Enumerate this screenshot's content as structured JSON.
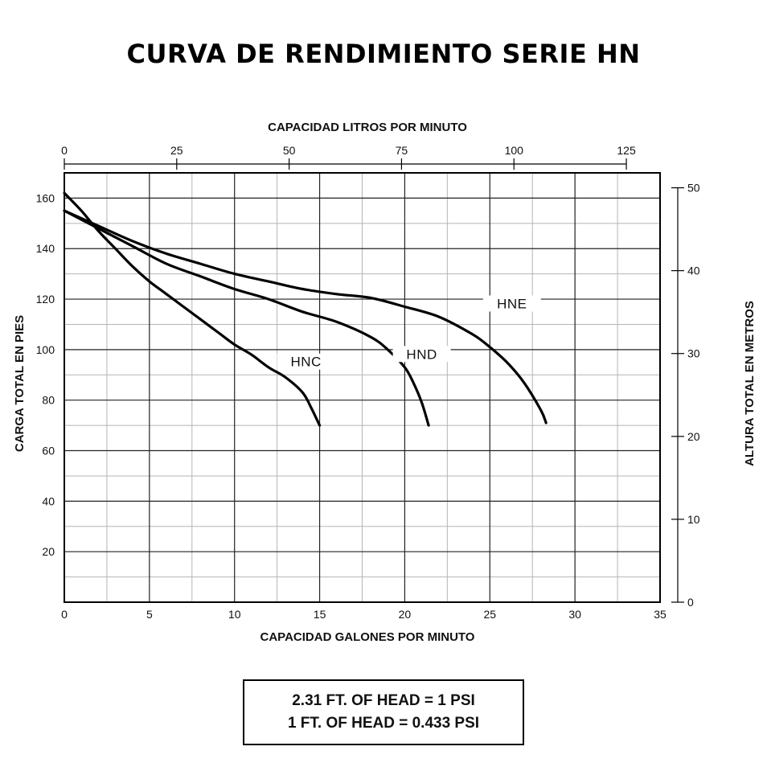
{
  "title": "CURVA DE RENDIMIENTO SERIE HN",
  "chart_data": {
    "type": "line",
    "title": "CURVA DE RENDIMIENTO SERIE HN",
    "xlabel": "CAPACIDAD GALONES POR MINUTO",
    "ylabel": "CARGA TOTAL EN PIES",
    "x2label": "CAPACIDAD LITROS POR MINUTO",
    "y2label": "ALTURA TOTAL EN METROS",
    "xlim": [
      0,
      35
    ],
    "ylim": [
      0,
      170
    ],
    "x2lim": [
      0,
      132.5
    ],
    "y2lim": [
      0,
      51.8
    ],
    "x_ticks": [
      0,
      5,
      10,
      15,
      20,
      25,
      30,
      35
    ],
    "y_ticks": [
      20,
      40,
      60,
      80,
      100,
      120,
      140,
      160
    ],
    "x2_ticks": [
      0,
      25,
      50,
      75,
      100,
      125
    ],
    "y2_ticks": [
      0,
      10,
      20,
      30,
      40,
      50
    ],
    "grid": true,
    "series": [
      {
        "name": "HNC",
        "color": "#000000",
        "x": [
          0,
          1,
          2,
          3,
          4,
          5,
          6,
          7,
          8,
          9,
          10,
          11,
          12,
          13,
          14,
          14.5,
          15
        ],
        "y": [
          162,
          155,
          147,
          140,
          133,
          127,
          122,
          117,
          112,
          107,
          102,
          98,
          93,
          89,
          83,
          77,
          70
        ]
      },
      {
        "name": "HND",
        "color": "#000000",
        "x": [
          0,
          2,
          4,
          6,
          8,
          10,
          12,
          14,
          16,
          18,
          19,
          20,
          20.5,
          21,
          21.4
        ],
        "y": [
          155,
          148,
          141,
          134,
          129,
          124,
          120,
          115,
          111,
          105,
          100,
          93,
          87,
          79,
          70
        ]
      },
      {
        "name": "HNE",
        "color": "#000000",
        "x": [
          0,
          2,
          4,
          6,
          8,
          10,
          12,
          14,
          16,
          18,
          20,
          22,
          24,
          25,
          26,
          27,
          28,
          28.3
        ],
        "y": [
          155,
          149,
          143,
          138,
          134,
          130,
          127,
          124,
          122,
          120.5,
          117,
          113,
          106,
          101,
          95,
          87,
          76,
          71
        ]
      }
    ]
  },
  "note": {
    "line1": "2.31 FT. OF HEAD = 1 PSI",
    "line2": "1 FT. OF HEAD = 0.433 PSI"
  }
}
